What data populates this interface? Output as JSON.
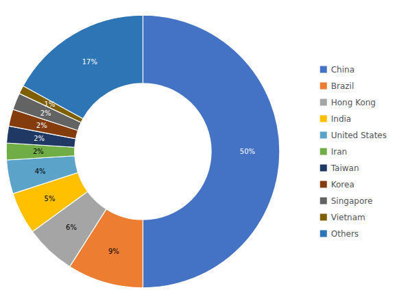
{
  "chart_data": {
    "type": "pie",
    "categories": [
      "China",
      "Brazil",
      "Hong Kong",
      "India",
      "United States",
      "Iran",
      "Taiwan",
      "Korea",
      "Singapore",
      "Vietnam",
      "Others"
    ],
    "values": [
      50,
      9,
      6,
      5,
      4,
      2,
      2,
      2,
      2,
      1,
      17
    ],
    "value_labels": [
      "50%",
      "9%",
      "6%",
      "5%",
      "4%",
      "2%",
      "2%",
      "2%",
      "2%",
      "1%",
      "17%"
    ],
    "colors": [
      "#4472C4",
      "#ED7D31",
      "#A5A5A5",
      "#FFC000",
      "#5BA3C9",
      "#70AD47",
      "#1F3864",
      "#843C0C",
      "#636363",
      "#7F6000",
      "#2E75B6"
    ],
    "data_labels": true,
    "legend": "right"
  }
}
